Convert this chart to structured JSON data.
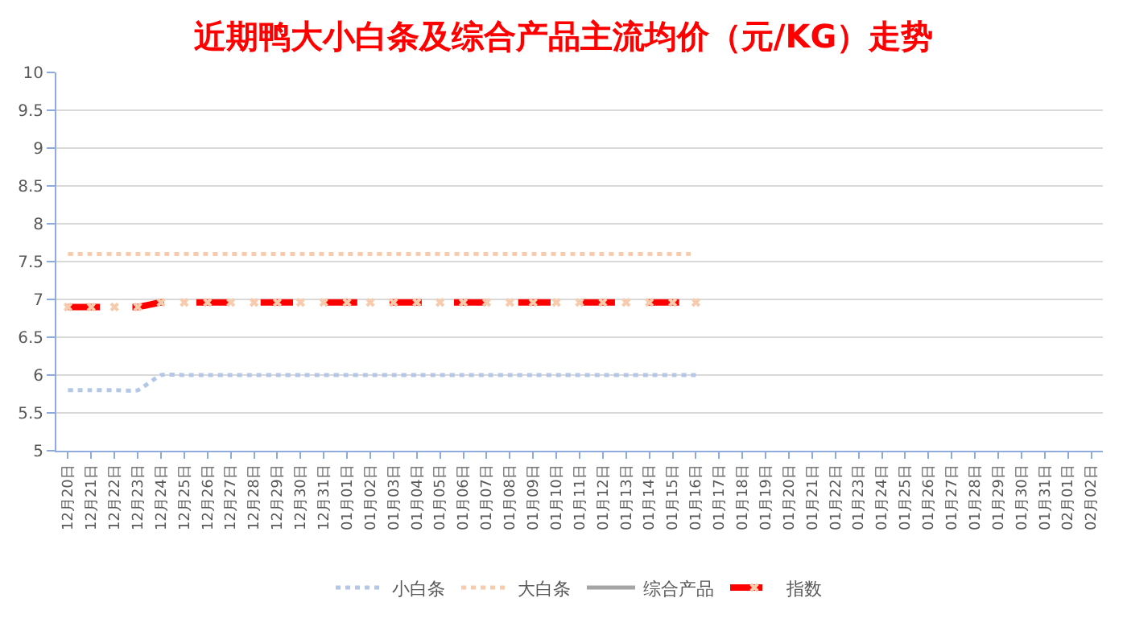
{
  "chart_data": {
    "type": "line",
    "title": "近期鸭大小白条及综合产品主流均价（元/KG）走势",
    "categories": [
      "12月20日",
      "12月21日",
      "12月22日",
      "12月23日",
      "12月24日",
      "12月25日",
      "12月26日",
      "12月27日",
      "12月28日",
      "12月29日",
      "12月30日",
      "12月31日",
      "01月01日",
      "01月02日",
      "01月03日",
      "01月04日",
      "01月05日",
      "01月06日",
      "01月07日",
      "01月08日",
      "01月09日",
      "01月10日",
      "01月11日",
      "01月12日",
      "01月13日",
      "01月14日",
      "01月15日",
      "01月16日",
      "01月17日",
      "01月18日",
      "01月19日",
      "01月20日",
      "01月21日",
      "01月22日",
      "01月23日",
      "01月24日",
      "01月25日",
      "01月26日",
      "01月27日",
      "01月28日",
      "01月29日",
      "01月30日",
      "01月31日",
      "02月01日",
      "02月02日"
    ],
    "series": [
      {
        "name": "小白条",
        "color": "#b4c7e7",
        "line_style": "dotted",
        "values": [
          5.8,
          5.8,
          5.8,
          5.8,
          6.0,
          6.0,
          6.0,
          6.0,
          6.0,
          6.0,
          6.0,
          6.0,
          6.0,
          6.0,
          6.0,
          6.0,
          6.0,
          6.0,
          6.0,
          6.0,
          6.0,
          6.0,
          6.0,
          6.0,
          6.0,
          6.0,
          6.0,
          6.0,
          null,
          null,
          null,
          null,
          null,
          null,
          null,
          null,
          null,
          null,
          null,
          null,
          null,
          null,
          null,
          null,
          null
        ]
      },
      {
        "name": "大白条",
        "color": "#f8cbad",
        "line_style": "dotted",
        "values": [
          7.6,
          7.6,
          7.6,
          7.6,
          7.6,
          7.6,
          7.6,
          7.6,
          7.6,
          7.6,
          7.6,
          7.6,
          7.6,
          7.6,
          7.6,
          7.6,
          7.6,
          7.6,
          7.6,
          7.6,
          7.6,
          7.6,
          7.6,
          7.6,
          7.6,
          7.6,
          7.6,
          7.6,
          null,
          null,
          null,
          null,
          null,
          null,
          null,
          null,
          null,
          null,
          null,
          null,
          null,
          null,
          null,
          null,
          null
        ]
      },
      {
        "name": "综合产品",
        "color": "#a5a5a5",
        "line_style": "solid",
        "values": [
          null,
          null,
          null,
          null,
          null,
          null,
          null,
          null,
          null,
          null,
          null,
          null,
          null,
          null,
          null,
          null,
          null,
          null,
          null,
          null,
          null,
          null,
          null,
          null,
          null,
          null,
          null,
          null,
          null,
          null,
          null,
          null,
          null,
          null,
          null,
          null,
          null,
          null,
          null,
          null,
          null,
          null,
          null,
          null,
          null
        ]
      },
      {
        "name": "指数",
        "color": "#ff0000",
        "line_style": "dashed",
        "marker": "cross",
        "values": [
          6.9,
          6.9,
          6.9,
          6.9,
          6.96,
          6.96,
          6.96,
          6.96,
          6.96,
          6.96,
          6.96,
          6.96,
          6.96,
          6.96,
          6.96,
          6.96,
          6.96,
          6.96,
          6.96,
          6.96,
          6.96,
          6.96,
          6.96,
          6.96,
          6.96,
          6.96,
          6.96,
          6.96,
          null,
          null,
          null,
          null,
          null,
          null,
          null,
          null,
          null,
          null,
          null,
          null,
          null,
          null,
          null,
          null,
          null
        ]
      }
    ],
    "ylim": [
      5,
      10
    ],
    "yticks": [
      5,
      5.5,
      6,
      6.5,
      7,
      7.5,
      8,
      8.5,
      9,
      9.5,
      10
    ],
    "grid": "y",
    "legend": "bottom"
  }
}
